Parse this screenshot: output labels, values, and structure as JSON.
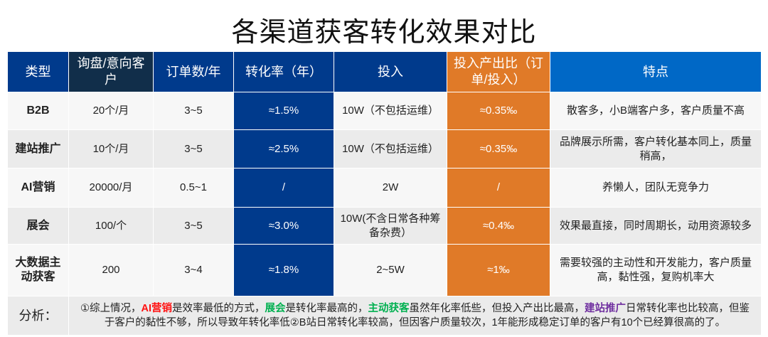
{
  "title": "各渠道获客转化效果对比",
  "headers": [
    "类型",
    "询盘/意向客户",
    "订单数/年",
    "转化率（年）",
    "投入",
    "投入产出比（订单/投入）",
    "特点"
  ],
  "rows": [
    {
      "type": "B2B",
      "inquiry": "20个/月",
      "orders": "3~5",
      "conversion": "≈1.5%",
      "investment": "10W（不包括运维）",
      "roi": "≈0.35‰",
      "features": "散客多，小B端客户多，客户质量不高"
    },
    {
      "type": "建站推广",
      "inquiry": "10个/月",
      "orders": "3~5",
      "conversion": "≈2.5%",
      "investment": "10W（不包括运维）",
      "roi": "≈0.35‰",
      "features": "品牌展示所需，客户转化基本同上，质量稍高，"
    },
    {
      "type": "AI营销",
      "inquiry": "20000/月",
      "orders": "0.5~1",
      "conversion": "/",
      "investment": "2W",
      "roi": "/",
      "features": "养懒人，团队无竞争力"
    },
    {
      "type": "展会",
      "inquiry": "100/个",
      "orders": "3~5",
      "conversion": "≈3.0%",
      "investment": "10W(不含日常各种筹备杂费）",
      "roi": "≈0.4‰",
      "features": "效果最直接，同时周期长，动用资源较多"
    },
    {
      "type": "大数据主动获客",
      "inquiry": "200",
      "orders": "3~4",
      "conversion": "≈1.8%",
      "investment": "2~5W",
      "roi": "≈1‰",
      "features": "需要较强的主动性和开发能力，客户质量高，黏性强，复购机率大"
    }
  ],
  "analysis": {
    "label": "分析：",
    "segments": [
      {
        "text": "①综上情况，",
        "style": "plain"
      },
      {
        "text": "AI营销",
        "style": "red"
      },
      {
        "text": "是效率最低的方式，",
        "style": "plain"
      },
      {
        "text": "展会",
        "style": "green"
      },
      {
        "text": "是转化率最高的，",
        "style": "plain"
      },
      {
        "text": "主动获客",
        "style": "green"
      },
      {
        "text": "虽然年化率低些，但投入产出比最高，",
        "style": "plain"
      },
      {
        "text": "建站推广",
        "style": "purple"
      },
      {
        "text": "日常转化率也比较高，但鉴于客户的黏性不够，所以导致年转化率低②B站日常转化率较高，但因客户质量较次，1年能形成稳定订单的客户有10个已经算很高的了。",
        "style": "plain"
      }
    ]
  },
  "colors": {
    "header_blue": "#003a8c",
    "header_dark": "#112e4a",
    "orange": "#e07a28",
    "light_blue": "#0068c6",
    "red": "#ff1010",
    "green": "#00b050",
    "purple": "#7030a0"
  }
}
